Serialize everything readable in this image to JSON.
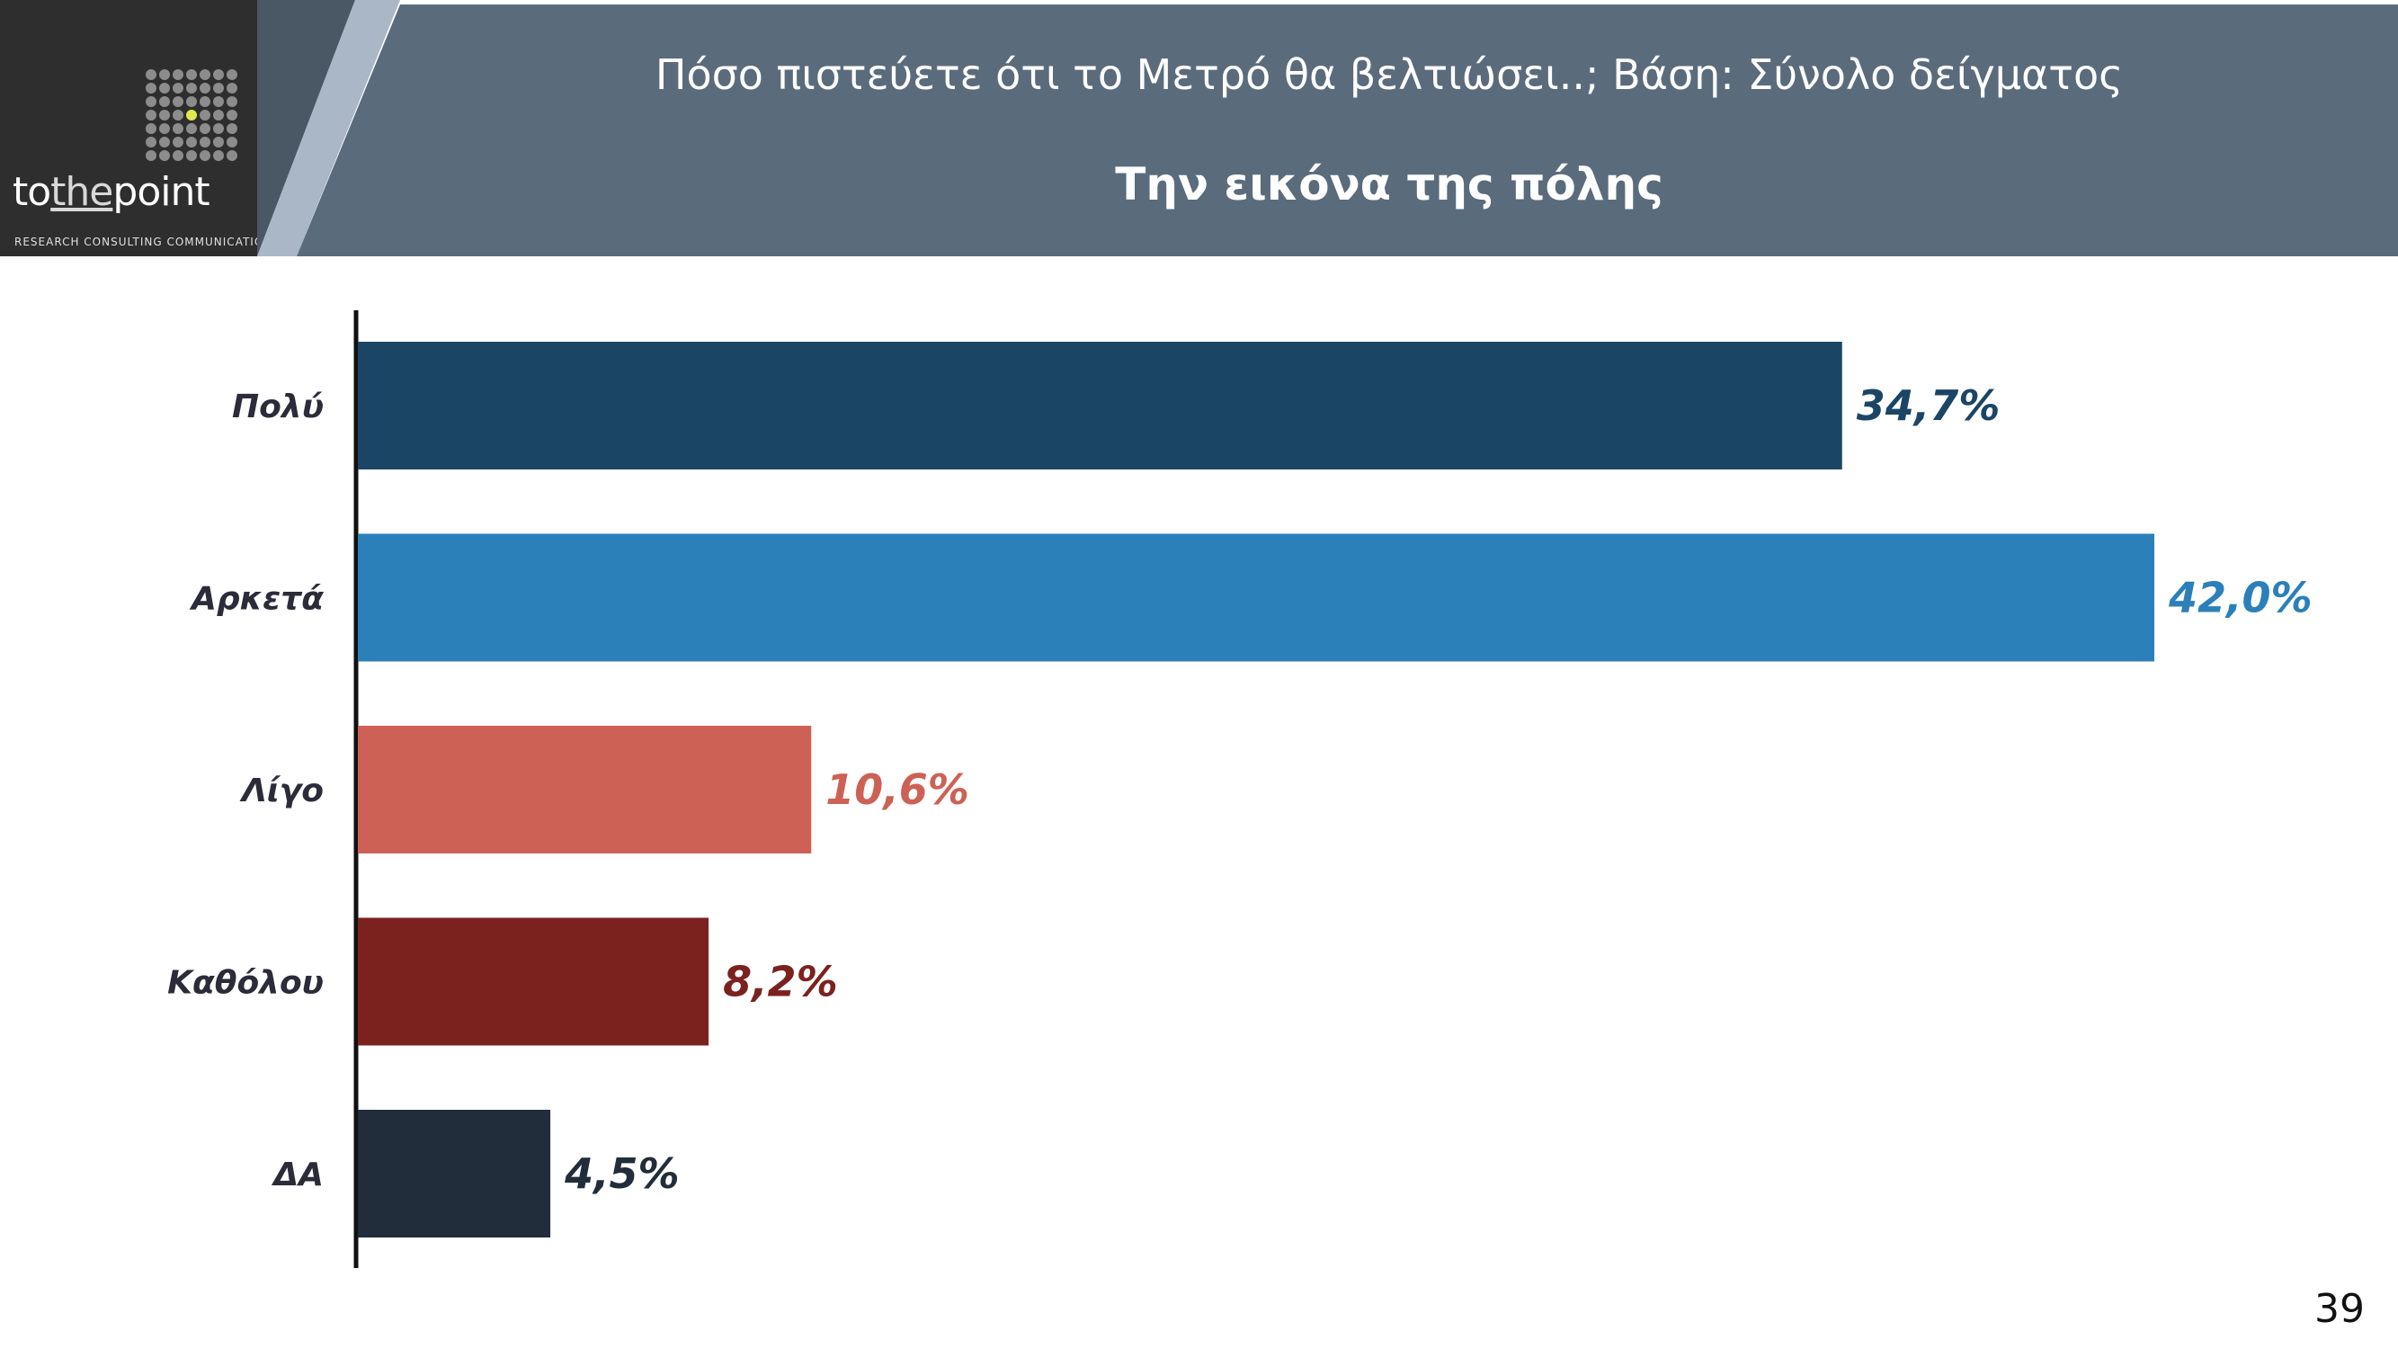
{
  "header": {
    "title": "Πόσο πιστεύετε ότι το Μετρό θα βελτιώσει..; Βάση: Σύνολο δείγματος",
    "subtitle": "Την εικόνα της πόλης"
  },
  "logo": {
    "pre": "to",
    "the": "the",
    "post": "point",
    "tagline": "RESEARCH  CONSULTING  COMMUNICATION"
  },
  "page_number": "39",
  "colors": {
    "header_band": "#5a6b7c",
    "logo_bg": "#2e2e2e",
    "logo_accent": "#e0e84a"
  },
  "chart_data": {
    "type": "bar",
    "orientation": "horizontal",
    "categories": [
      "Πολύ",
      "Αρκετά",
      "Λίγο",
      "Καθόλου",
      "ΔΑ"
    ],
    "values": [
      34.7,
      42.0,
      10.6,
      8.2,
      4.5
    ],
    "value_labels": [
      "34,7%",
      "42,0%",
      "10,6%",
      "8,2%",
      "4,5%"
    ],
    "colors": [
      "#1b4565",
      "#2b80ba",
      "#cd6155",
      "#7b221f",
      "#212d3b"
    ],
    "title": "",
    "xlabel": "",
    "ylabel": "",
    "xlim": [
      0,
      42.0
    ],
    "grid": false,
    "legend": "none"
  }
}
